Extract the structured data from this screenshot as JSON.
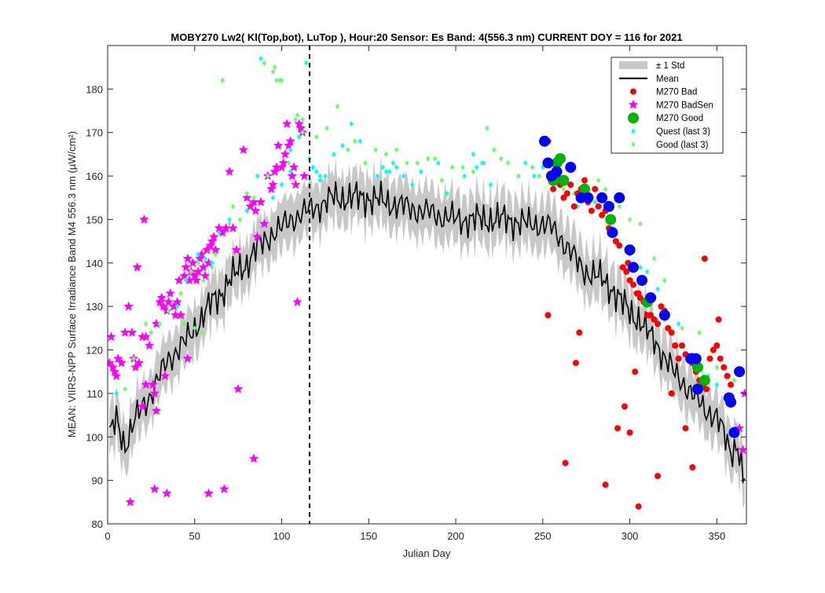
{
  "figure": {
    "background": "#ffffff"
  },
  "chart_data": {
    "type": "scatter",
    "title": "MOBY270   Lw2( Kl(Top,bot), LuTop ),   Hour:20 Sensor: Es Band: 4(556.3 nm)   CURRENT DOY = 116 for 2021",
    "xlabel": "Julian Day",
    "ylabel": "MEAN: VIIRS-NPP Surface Irradiance Band M4 556.3 nm (µW/cm²)",
    "xlim": [
      0,
      367
    ],
    "ylim": [
      80,
      190
    ],
    "xticks": [
      0,
      50,
      100,
      150,
      200,
      250,
      300,
      350
    ],
    "yticks": [
      80,
      90,
      100,
      110,
      120,
      130,
      140,
      150,
      160,
      170,
      180
    ],
    "grid": false,
    "legend_position": "top-right",
    "current_doy": 116,
    "legend": [
      {
        "key": "std",
        "label": "± 1 Std",
        "color": "#c8c8c8",
        "marker": "patch"
      },
      {
        "key": "mean",
        "label": "Mean",
        "color": "#000000",
        "marker": "line"
      },
      {
        "key": "bad",
        "label": "M270 Bad",
        "color": "#ff0000",
        "marker": "circle"
      },
      {
        "key": "badsen",
        "label": "M270 BadSen",
        "color": "#ff00ff",
        "marker": "star"
      },
      {
        "key": "good",
        "label": "M270 Good",
        "color": "#00b400",
        "marker": "big-circle"
      },
      {
        "key": "quest",
        "label": "Quest (last 3)",
        "color": "#00ffff",
        "marker": "diamond"
      },
      {
        "key": "goodlast",
        "label": "Good (last 3)",
        "color": "#66ff66",
        "marker": "diamond"
      }
    ],
    "mean_anchors": {
      "x": [
        1,
        5,
        10,
        15,
        20,
        25,
        30,
        35,
        40,
        45,
        50,
        55,
        60,
        65,
        70,
        75,
        80,
        85,
        90,
        95,
        100,
        105,
        110,
        115,
        120,
        130,
        140,
        150,
        160,
        170,
        180,
        190,
        200,
        210,
        220,
        230,
        240,
        250,
        255,
        260,
        265,
        270,
        275,
        280,
        285,
        290,
        295,
        300,
        305,
        310,
        315,
        320,
        325,
        330,
        335,
        340,
        345,
        350,
        355,
        358,
        362,
        365
      ],
      "y": [
        100,
        104,
        98,
        103,
        107,
        110,
        114,
        118,
        120,
        122,
        125,
        128,
        131,
        133,
        136,
        138,
        140,
        143,
        145,
        147,
        148,
        150,
        151,
        152,
        153,
        155,
        155,
        155,
        154,
        153,
        152,
        151,
        150,
        150,
        150,
        150,
        149,
        149,
        148,
        146,
        143,
        140,
        138,
        137,
        136,
        134,
        131,
        129,
        127,
        124,
        122,
        118,
        115,
        113,
        110,
        108,
        106,
        104,
        100,
        97,
        98,
        90
      ]
    },
    "std_half_width": 4,
    "series": [
      {
        "name": "M270 BadSen",
        "type": "star",
        "color": "#ff00ff",
        "x": [
          1,
          2,
          3,
          4,
          5,
          6,
          8,
          10,
          12,
          14,
          15,
          16,
          18,
          20,
          21,
          22,
          24,
          26,
          27,
          28,
          30,
          31,
          32,
          34,
          35,
          36,
          38,
          39,
          40,
          41,
          42,
          44,
          45,
          46,
          47,
          48,
          49,
          50,
          51,
          52,
          53,
          54,
          55,
          56,
          57,
          58,
          59,
          60,
          61,
          62,
          64,
          66,
          68,
          70,
          72,
          74,
          75,
          78,
          80,
          82,
          84,
          85,
          86,
          88,
          90,
          92,
          94,
          95,
          96,
          97,
          98,
          100,
          101,
          102,
          103,
          104,
          105,
          106,
          107,
          108,
          109,
          110,
          111,
          112,
          113,
          13,
          27,
          34,
          58,
          67,
          84,
          20,
          17,
          28,
          33,
          46,
          22,
          365,
          363,
          366
        ],
        "y": [
          117,
          123,
          116,
          115,
          114,
          118,
          117,
          124,
          130,
          124,
          118,
          116,
          117,
          123,
          150,
          123,
          121,
          112,
          110,
          126,
          131,
          132,
          130,
          129,
          131,
          133,
          130,
          128,
          131,
          136,
          128,
          137,
          139,
          141,
          136,
          138,
          140,
          137,
          136,
          138,
          141,
          142,
          139,
          137,
          143,
          140,
          144,
          145,
          146,
          143,
          148,
          147,
          148,
          161,
          148,
          143,
          111,
          166,
          155,
          153,
          154,
          152,
          146,
          154,
          149,
          160,
          157,
          158,
          161,
          162,
          167,
          162,
          163,
          165,
          172,
          167,
          168,
          160,
          162,
          158,
          131,
          172,
          171,
          170,
          160,
          85,
          88,
          87,
          87,
          88,
          95,
          107,
          139,
          106,
          114,
          118,
          112,
          97,
          102,
          110
        ]
      },
      {
        "name": "M270 Bad",
        "type": "circle",
        "color": "#ff0000",
        "x": [
          253,
          256,
          258,
          260,
          262,
          264,
          266,
          268,
          270,
          272,
          274,
          276,
          278,
          280,
          282,
          284,
          286,
          288,
          290,
          292,
          294,
          296,
          298,
          300,
          302,
          304,
          306,
          308,
          310,
          312,
          314,
          316,
          318,
          320,
          322,
          324,
          326,
          328,
          330,
          332,
          334,
          336,
          338,
          340,
          342,
          344,
          346,
          348,
          350,
          352,
          354,
          356,
          358,
          253,
          263,
          269,
          271,
          286,
          293,
          297,
          300,
          303,
          305,
          316,
          324,
          332,
          336,
          343,
          351,
          305,
          299
        ],
        "y": [
          168,
          157,
          160,
          158,
          155,
          156,
          158,
          153,
          156,
          157,
          159,
          154,
          152,
          157,
          153,
          151,
          152,
          148,
          150,
          145,
          144,
          139,
          138,
          136,
          135,
          133,
          132,
          131,
          128,
          128,
          127,
          126,
          130,
          129,
          125,
          124,
          121,
          118,
          121,
          119,
          118,
          117,
          115,
          113,
          112,
          111,
          118,
          120,
          121,
          118,
          116,
          114,
          112,
          128,
          94,
          117,
          124,
          89,
          102,
          107,
          101,
          115,
          84,
          91,
          110,
          102,
          93,
          141,
          127,
          133,
          140
        ]
      },
      {
        "name": "M270 Good",
        "type": "big-circle",
        "color": "#00b400",
        "x": [
          256,
          258,
          260,
          262,
          274,
          289,
          310,
          339,
          343
        ],
        "y": [
          159,
          163,
          164,
          159,
          157,
          150,
          131,
          116,
          113
        ]
      },
      {
        "name": "Blue",
        "type": "big-circle",
        "color": "#0000ff",
        "x": [
          251,
          253,
          255,
          258,
          266,
          272,
          276,
          284,
          290,
          294,
          302,
          307,
          312,
          320,
          335,
          338,
          339,
          357,
          358,
          360,
          363,
          288,
          300
        ],
        "y": [
          168,
          163,
          160,
          161,
          162,
          155,
          155,
          155,
          147,
          155,
          139,
          136,
          132,
          128,
          118,
          118,
          111,
          109,
          108,
          101,
          115,
          153,
          143
        ]
      },
      {
        "name": "Quest (last 3)",
        "type": "diamond",
        "color": "#00ffff",
        "x": [
          5,
          40,
          45,
          52,
          56,
          60,
          64,
          70,
          80,
          86,
          88,
          95,
          100,
          105,
          110,
          114,
          116,
          118,
          120,
          122,
          125,
          130,
          135,
          140,
          145,
          155,
          158,
          160,
          162,
          164,
          166,
          170,
          175,
          180,
          190,
          195,
          205,
          210,
          212,
          216,
          220,
          240,
          245,
          250,
          254,
          258,
          262,
          265,
          270,
          280,
          290,
          300,
          306,
          310,
          316,
          320,
          328,
          336,
          345,
          350,
          362,
          105,
          118,
          122
        ],
        "y": [
          110,
          130,
          136,
          142,
          141,
          140,
          147,
          150,
          152,
          160,
          187,
          155,
          158,
          166,
          169,
          186,
          164,
          162,
          161,
          159,
          160,
          165,
          167,
          172,
          168,
          160,
          162,
          161,
          161,
          163,
          162,
          160,
          158,
          161,
          163,
          156,
          160,
          165,
          162,
          163,
          158,
          163,
          160,
          162,
          163,
          158,
          159,
          158,
          153,
          154,
          148,
          142,
          139,
          138,
          134,
          127,
          126,
          119,
          114,
          112,
          115,
          161,
          162,
          160
        ]
      },
      {
        "name": "Good (last 3)",
        "type": "diamond",
        "color": "#66ff66",
        "x": [
          10,
          15,
          22,
          25,
          30,
          35,
          42,
          48,
          52,
          55,
          60,
          62,
          66,
          70,
          72,
          76,
          80,
          84,
          90,
          92,
          96,
          100,
          104,
          108,
          112,
          120,
          126,
          132,
          138,
          142,
          148,
          154,
          160,
          166,
          172,
          178,
          184,
          188,
          192,
          198,
          204,
          210,
          215,
          218,
          222,
          226,
          230,
          236,
          244,
          248,
          256,
          262,
          268,
          274,
          282,
          286,
          294,
          300,
          306,
          314,
          320,
          330,
          340,
          350,
          360,
          66,
          95,
          97,
          99,
          109,
          112,
          44,
          50,
          54
        ],
        "y": [
          111,
          118,
          126,
          124,
          126,
          129,
          133,
          138,
          140,
          136,
          139,
          142,
          182,
          149,
          153,
          150,
          156,
          155,
          186,
          160,
          185,
          182,
          163,
          173,
          170,
          169,
          171,
          176,
          166,
          168,
          163,
          166,
          165,
          166,
          163,
          163,
          164,
          164,
          159,
          162,
          162,
          161,
          163,
          171,
          166,
          164,
          163,
          160,
          162,
          160,
          158,
          157,
          156,
          155,
          159,
          157,
          153,
          150,
          149,
          141,
          136,
          125,
          124,
          116,
          113,
          182,
          184,
          182,
          182,
          174,
          173,
          126,
          125,
          124
        ]
      }
    ]
  }
}
